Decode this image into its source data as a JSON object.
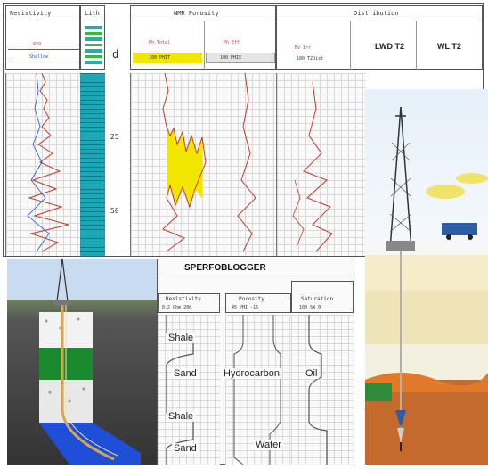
{
  "top_log": {
    "headers": {
      "resistivity": "Resistivity",
      "lith": "Lith",
      "nmr": "NMR Porosity",
      "distribution": "Distribution"
    },
    "values": {
      "res_label": "RS9",
      "res_label2": "Shallow",
      "nmr_left": "Ph Total",
      "nmr_right": "Ph Eff",
      "nmr_box1": "100 PHIT",
      "nmr_box2": "100 PHIE",
      "dist_label": "Bv Irr",
      "dist_box": "100 T2Dist",
      "lwd": "LWD T2",
      "wl": "WL T2"
    },
    "depth_marks": [
      "25",
      "50"
    ]
  },
  "bottom_log": {
    "title": "SPERFOBLOGGER",
    "col_headers": [
      "Resistivity",
      "Porosity",
      "Saturation"
    ],
    "scale_headers": [
      "0.2 Ohm 200",
      "45 PHI -15",
      "100 SW 0"
    ],
    "lithology": [
      "Shale",
      "Sand",
      "Shale",
      "Sand"
    ],
    "fluids": [
      "Hydrocarbon",
      "Oil",
      "Water"
    ]
  },
  "colors": {
    "resistivity_curve": "#c0392b",
    "lith_fill": "#1aa8b8",
    "nmr_fill": "#f2e600",
    "sand_green": "#1b8a2e",
    "water_blue": "#1e4fd6",
    "earth_brown": "#c46a2c"
  }
}
